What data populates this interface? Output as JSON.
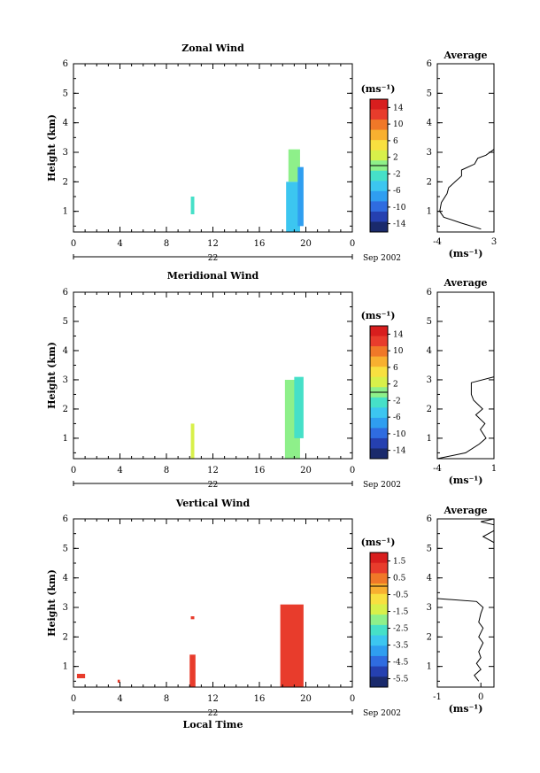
{
  "chart_data": [
    {
      "type": "heatmap",
      "title": "Zonal Wind",
      "ylabel": "Height (km)",
      "xlim": [
        0,
        24
      ],
      "ylim": [
        0.3,
        6
      ],
      "x_ticks": [
        "0",
        "4",
        "8",
        "12",
        "16",
        "20",
        "0"
      ],
      "y_ticks": [
        "1",
        "2",
        "3",
        "4",
        "5",
        "6"
      ],
      "date_marker": "22",
      "date_label": "Sep 2002",
      "colorbar": {
        "unit": "(ms⁻¹)",
        "ticks": [
          "14",
          "10",
          "6",
          "2",
          "-2",
          "-6",
          "-10",
          "-14"
        ],
        "range": [
          -16,
          16
        ]
      },
      "cells": [
        {
          "x0": 10.1,
          "x1": 10.4,
          "y0": 0.9,
          "y1": 1.5,
          "v": -2
        },
        {
          "x0": 18.5,
          "x1": 19.5,
          "y0": 2.0,
          "y1": 3.1,
          "v": 1
        },
        {
          "x0": 18.3,
          "x1": 19.5,
          "y0": 0.3,
          "y1": 2.0,
          "v": -4
        },
        {
          "x0": 19.3,
          "x1": 19.8,
          "y0": 0.5,
          "y1": 2.5,
          "v": -7
        }
      ],
      "average": {
        "title": "Average",
        "xlabel": "(ms⁻¹)",
        "x_ticks": [
          "-4",
          "3"
        ],
        "xlim": [
          -4,
          3
        ],
        "ylim": [
          0.3,
          6
        ],
        "profile": [
          [
            1.4,
            0.4
          ],
          [
            -1,
            0.6
          ],
          [
            -3.2,
            0.8
          ],
          [
            -3.7,
            1.0
          ],
          [
            -3.5,
            1.3
          ],
          [
            -2.8,
            1.6
          ],
          [
            -2.6,
            1.8
          ],
          [
            -1.8,
            2.0
          ],
          [
            -1.0,
            2.2
          ],
          [
            -1.0,
            2.4
          ],
          [
            0.6,
            2.6
          ],
          [
            1.0,
            2.8
          ],
          [
            2.0,
            2.9
          ],
          [
            3.0,
            3.1
          ]
        ]
      }
    },
    {
      "type": "heatmap",
      "title": "Meridional Wind",
      "ylabel": "Height (km)",
      "xlim": [
        0,
        24
      ],
      "ylim": [
        0.3,
        6
      ],
      "x_ticks": [
        "0",
        "4",
        "8",
        "12",
        "16",
        "20",
        "0"
      ],
      "y_ticks": [
        "1",
        "2",
        "3",
        "4",
        "5",
        "6"
      ],
      "date_marker": "22",
      "date_label": "Sep 2002",
      "colorbar": {
        "unit": "(ms⁻¹)",
        "ticks": [
          "14",
          "10",
          "6",
          "2",
          "-2",
          "-6",
          "-10",
          "-14"
        ],
        "range": [
          -16,
          16
        ]
      },
      "cells": [
        {
          "x0": 10.1,
          "x1": 10.4,
          "y0": 0.3,
          "y1": 1.5,
          "v": 2
        },
        {
          "x0": 18.2,
          "x1": 19.5,
          "y0": 0.3,
          "y1": 3.0,
          "v": 1
        },
        {
          "x0": 19.0,
          "x1": 19.8,
          "y0": 1.0,
          "y1": 3.1,
          "v": -3
        }
      ],
      "average": {
        "title": "Average",
        "xlabel": "(ms⁻¹)",
        "x_ticks": [
          "-4",
          "1"
        ],
        "xlim": [
          -4,
          1
        ],
        "ylim": [
          0.3,
          6
        ],
        "profile": [
          [
            -4,
            0.3
          ],
          [
            -1.5,
            0.5
          ],
          [
            -0.3,
            0.8
          ],
          [
            0.3,
            1.0
          ],
          [
            -0.2,
            1.3
          ],
          [
            0.2,
            1.5
          ],
          [
            -0.6,
            1.8
          ],
          [
            0.0,
            2.0
          ],
          [
            -0.8,
            2.3
          ],
          [
            -1.0,
            2.5
          ],
          [
            -1.0,
            2.9
          ],
          [
            1.2,
            3.1
          ]
        ]
      }
    },
    {
      "type": "heatmap",
      "title": "Vertical Wind",
      "ylabel": "Height (km)",
      "xlabel": "Local Time",
      "xlim": [
        0,
        24
      ],
      "ylim": [
        0.3,
        6
      ],
      "x_ticks": [
        "0",
        "4",
        "8",
        "12",
        "16",
        "20",
        "0"
      ],
      "y_ticks": [
        "1",
        "2",
        "3",
        "4",
        "5",
        "6"
      ],
      "date_marker": "22",
      "date_label": "Sep 2002",
      "colorbar": {
        "unit": "(ms⁻¹)",
        "ticks": [
          "1.5",
          "0.5",
          "-0.5",
          "-1.5",
          "-2.5",
          "-3.5",
          "-4.5",
          "-5.5"
        ],
        "range": [
          -6.0,
          2.0
        ]
      },
      "cells": [
        {
          "x0": 0.3,
          "x1": 1.0,
          "y0": 0.6,
          "y1": 0.75,
          "v": 0.8
        },
        {
          "x0": 3.8,
          "x1": 4.0,
          "y0": 0.45,
          "y1": 0.55,
          "v": 0.8
        },
        {
          "x0": 10.1,
          "x1": 10.4,
          "y0": 2.6,
          "y1": 2.7,
          "v": 0.8
        },
        {
          "x0": 10.0,
          "x1": 10.5,
          "y0": 0.3,
          "y1": 1.4,
          "v": 0.8
        },
        {
          "x0": 17.8,
          "x1": 19.8,
          "y0": 0.3,
          "y1": 3.1,
          "v": 0.8
        }
      ],
      "average": {
        "title": "Average",
        "xlabel": "(ms⁻¹)",
        "x_ticks": [
          "-1",
          "0"
        ],
        "xlim": [
          -1,
          0.3
        ],
        "ylim": [
          0.3,
          6
        ],
        "profile_segments": [
          [
            [
              -0.05,
              0.5
            ],
            [
              -0.15,
              0.7
            ],
            [
              0.0,
              0.9
            ],
            [
              -0.1,
              1.1
            ],
            [
              0.0,
              1.3
            ],
            [
              -0.05,
              1.5
            ],
            [
              0.05,
              1.8
            ],
            [
              -0.05,
              2.0
            ],
            [
              0.05,
              2.3
            ],
            [
              -0.05,
              2.5
            ],
            [
              0.0,
              2.8
            ],
            [
              0.05,
              3.0
            ],
            [
              -0.1,
              3.2
            ],
            [
              -1.0,
              3.3
            ]
          ],
          [
            [
              0.3,
              5.2
            ],
            [
              0.05,
              5.4
            ],
            [
              0.3,
              5.6
            ]
          ],
          [
            [
              0.3,
              5.8
            ],
            [
              0.0,
              5.9
            ],
            [
              0.3,
              6.0
            ]
          ]
        ]
      }
    }
  ]
}
